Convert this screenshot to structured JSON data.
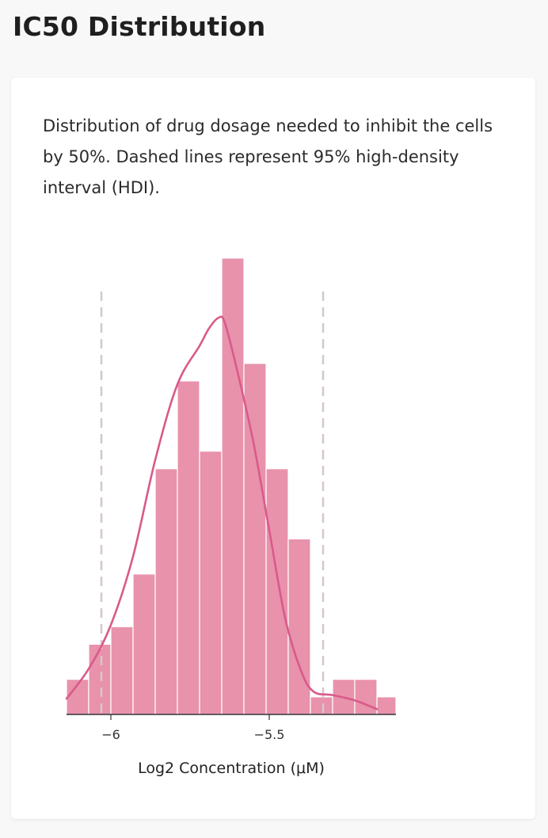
{
  "page_title": "IC50 Distribution",
  "description": "Distribution of drug dosage needed to inhibit the cells by 50%. Dashed lines represent 95% high-density interval (HDI).",
  "colors": {
    "bar_fill": "#e892ac",
    "bar_stroke": "#ffffff",
    "kde_line": "#d95a8a",
    "hdi_line": "#d4c8cc",
    "axis": "#333333"
  },
  "chart_data": {
    "type": "bar",
    "subtype": "histogram",
    "title": "",
    "xlabel": "Log2 Concentration (μM)",
    "ylabel": "",
    "xlim": [
      -6.14,
      -5.1
    ],
    "ylim": [
      0,
      25
    ],
    "bin_edges": [
      -6.14,
      -6.07,
      -6.0,
      -5.93,
      -5.86,
      -5.79,
      -5.72,
      -5.65,
      -5.58,
      -5.51,
      -5.44,
      -5.37,
      -5.3,
      -5.23,
      -5.16,
      -5.1
    ],
    "counts": [
      2,
      4,
      5,
      8,
      14,
      19,
      15,
      26,
      20,
      14,
      10,
      1,
      2,
      2,
      1
    ],
    "kde": {
      "x": [
        -6.14,
        -6.07,
        -6.0,
        -5.93,
        -5.86,
        -5.79,
        -5.72,
        -5.69,
        -5.66,
        -5.64,
        -5.6,
        -5.55,
        -5.5,
        -5.45,
        -5.4,
        -5.36,
        -5.3,
        -5.23,
        -5.16
      ],
      "y": [
        0.9,
        2.6,
        5.1,
        9.0,
        14.5,
        18.8,
        21.0,
        22.0,
        22.6,
        22.3,
        19.5,
        15.5,
        10.5,
        5.5,
        2.5,
        1.3,
        1.1,
        0.8,
        0.3
      ]
    },
    "hdi": [
      -6.03,
      -5.33
    ],
    "x_ticks": [
      -6,
      -5.5
    ],
    "x_tick_labels": [
      "−6",
      "−5.5"
    ],
    "grid": false,
    "legend": "none"
  }
}
